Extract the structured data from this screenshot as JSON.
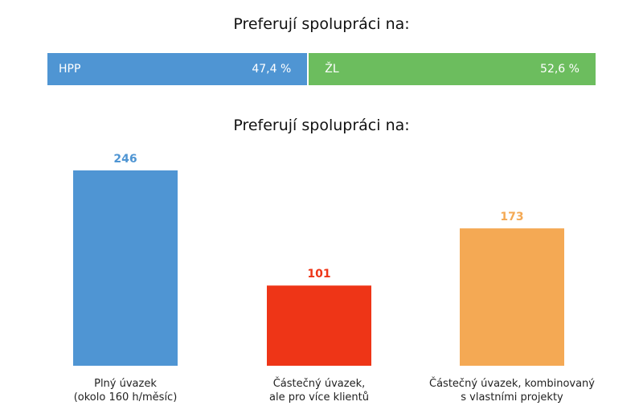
{
  "colors": {
    "hpp": "#4f95d3",
    "zl": "#6cbd5e",
    "full": "#4f95d3",
    "part_multi": "#ee3517",
    "part_projects": "#f4a954"
  },
  "chart_data": [
    {
      "type": "bar",
      "orientation": "horizontal-stacked",
      "title": "Preferují spolupráci na:",
      "series": [
        {
          "name": "HPP",
          "value": 47.4,
          "label": "47,4 %"
        },
        {
          "name": "ŽL",
          "value": 52.6,
          "label": "52,6 %"
        }
      ],
      "legend": "none",
      "grid": false
    },
    {
      "type": "bar",
      "title": "Preferují spolupráci na:",
      "categories": [
        [
          "Plný úvazek",
          "(okolo 160 h/měsíc)"
        ],
        [
          "Částečný úvazek,",
          "ale pro více klientů"
        ],
        [
          "Částečný úvazek, kombinovaný",
          "s vlastními projekty"
        ]
      ],
      "values": [
        246,
        101,
        173
      ],
      "value_labels": [
        "246",
        "101",
        "173"
      ],
      "ylim": [
        0,
        246
      ],
      "grid": false,
      "legend": "none"
    }
  ]
}
